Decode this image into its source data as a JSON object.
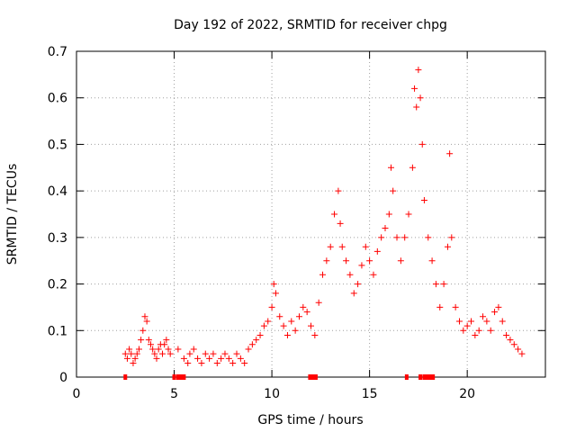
{
  "chart_data": {
    "type": "scatter",
    "title": "Day 192 of 2022, SRMTID for receiver chpg",
    "xlabel": "GPS time / hours",
    "ylabel": "SRMTID / TECUs",
    "xlim": [
      0,
      24
    ],
    "ylim": [
      0,
      0.7
    ],
    "x_ticks": [
      0,
      5,
      10,
      15,
      20
    ],
    "x_tick_labels": [
      "0",
      "5",
      "10",
      "15",
      "20"
    ],
    "y_ticks": [
      0,
      0.1,
      0.2,
      0.3,
      0.4,
      0.5,
      0.6,
      0.7
    ],
    "y_tick_labels": [
      "0",
      "0.1",
      "0.2",
      "0.3",
      "0.4",
      "0.5",
      "0.6",
      "0.7"
    ],
    "grid": true,
    "marker": "+",
    "color": "#ff0000",
    "series": [
      {
        "name": "SRMTID",
        "points": [
          [
            2.5,
            0.05
          ],
          [
            2.6,
            0.04
          ],
          [
            2.7,
            0.06
          ],
          [
            2.8,
            0.05
          ],
          [
            2.9,
            0.03
          ],
          [
            3.0,
            0.04
          ],
          [
            3.1,
            0.05
          ],
          [
            3.2,
            0.06
          ],
          [
            3.3,
            0.08
          ],
          [
            3.4,
            0.1
          ],
          [
            3.5,
            0.13
          ],
          [
            3.6,
            0.12
          ],
          [
            3.7,
            0.08
          ],
          [
            3.8,
            0.07
          ],
          [
            3.9,
            0.06
          ],
          [
            4.0,
            0.05
          ],
          [
            4.1,
            0.04
          ],
          [
            4.2,
            0.06
          ],
          [
            4.3,
            0.07
          ],
          [
            4.4,
            0.05
          ],
          [
            4.5,
            0.07
          ],
          [
            4.6,
            0.08
          ],
          [
            4.7,
            0.06
          ],
          [
            4.8,
            0.05
          ],
          [
            5.2,
            0.06
          ],
          [
            5.5,
            0.04
          ],
          [
            5.7,
            0.03
          ],
          [
            5.8,
            0.05
          ],
          [
            6.0,
            0.06
          ],
          [
            6.2,
            0.04
          ],
          [
            6.4,
            0.03
          ],
          [
            6.6,
            0.05
          ],
          [
            6.8,
            0.04
          ],
          [
            7.0,
            0.05
          ],
          [
            7.2,
            0.03
          ],
          [
            7.4,
            0.04
          ],
          [
            7.6,
            0.05
          ],
          [
            7.8,
            0.04
          ],
          [
            8.0,
            0.03
          ],
          [
            8.2,
            0.05
          ],
          [
            8.4,
            0.04
          ],
          [
            8.6,
            0.03
          ],
          [
            8.8,
            0.06
          ],
          [
            9.0,
            0.07
          ],
          [
            9.2,
            0.08
          ],
          [
            9.4,
            0.09
          ],
          [
            9.6,
            0.11
          ],
          [
            9.8,
            0.12
          ],
          [
            10.0,
            0.15
          ],
          [
            10.1,
            0.2
          ],
          [
            10.2,
            0.18
          ],
          [
            10.4,
            0.13
          ],
          [
            10.6,
            0.11
          ],
          [
            10.8,
            0.09
          ],
          [
            11.0,
            0.12
          ],
          [
            11.2,
            0.1
          ],
          [
            11.4,
            0.13
          ],
          [
            11.6,
            0.15
          ],
          [
            11.8,
            0.14
          ],
          [
            12.0,
            0.11
          ],
          [
            12.2,
            0.09
          ],
          [
            12.4,
            0.16
          ],
          [
            12.6,
            0.22
          ],
          [
            12.8,
            0.25
          ],
          [
            13.0,
            0.28
          ],
          [
            13.2,
            0.35
          ],
          [
            13.4,
            0.4
          ],
          [
            13.5,
            0.33
          ],
          [
            13.6,
            0.28
          ],
          [
            13.8,
            0.25
          ],
          [
            14.0,
            0.22
          ],
          [
            14.2,
            0.18
          ],
          [
            14.4,
            0.2
          ],
          [
            14.6,
            0.24
          ],
          [
            14.8,
            0.28
          ],
          [
            15.0,
            0.25
          ],
          [
            15.2,
            0.22
          ],
          [
            15.4,
            0.27
          ],
          [
            15.6,
            0.3
          ],
          [
            15.8,
            0.32
          ],
          [
            16.0,
            0.35
          ],
          [
            16.1,
            0.45
          ],
          [
            16.2,
            0.4
          ],
          [
            16.4,
            0.3
          ],
          [
            16.6,
            0.25
          ],
          [
            16.8,
            0.3
          ],
          [
            17.0,
            0.35
          ],
          [
            17.2,
            0.45
          ],
          [
            17.3,
            0.62
          ],
          [
            17.4,
            0.58
          ],
          [
            17.5,
            0.66
          ],
          [
            17.6,
            0.6
          ],
          [
            17.7,
            0.5
          ],
          [
            17.8,
            0.38
          ],
          [
            18.0,
            0.3
          ],
          [
            18.2,
            0.25
          ],
          [
            18.4,
            0.2
          ],
          [
            18.6,
            0.15
          ],
          [
            18.8,
            0.2
          ],
          [
            19.0,
            0.28
          ],
          [
            19.1,
            0.48
          ],
          [
            19.2,
            0.3
          ],
          [
            19.4,
            0.15
          ],
          [
            19.6,
            0.12
          ],
          [
            19.8,
            0.1
          ],
          [
            20.0,
            0.11
          ],
          [
            20.2,
            0.12
          ],
          [
            20.4,
            0.09
          ],
          [
            20.6,
            0.1
          ],
          [
            20.8,
            0.13
          ],
          [
            21.0,
            0.12
          ],
          [
            21.2,
            0.1
          ],
          [
            21.4,
            0.14
          ],
          [
            21.6,
            0.15
          ],
          [
            21.8,
            0.12
          ],
          [
            22.0,
            0.09
          ],
          [
            22.2,
            0.08
          ],
          [
            22.4,
            0.07
          ],
          [
            22.6,
            0.06
          ],
          [
            22.8,
            0.05
          ]
        ]
      }
    ],
    "annotations": [
      "gap markers on x-axis at 2.5, 5.0-5.5, 11.9-12.2, 17.0-18.3 hours"
    ]
  }
}
